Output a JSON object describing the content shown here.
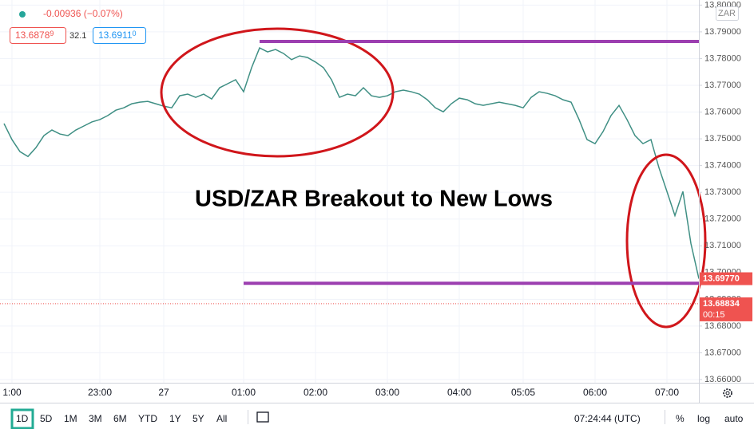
{
  "chart_data": {
    "type": "line",
    "change_label": "-0.00936 (−0.07%)",
    "bid": "13.6878",
    "bid_pip": "9",
    "spread": "32.1",
    "ask": "13.6911",
    "ask_pip": "0",
    "currency": "ZAR",
    "annotation": "USD/ZAR Breakout to New Lows",
    "color": "#3f8f84",
    "categories": [
      null,
      "1:00",
      null,
      null,
      null,
      null,
      null,
      null,
      null,
      null,
      null,
      null,
      "23:00",
      null,
      null,
      null,
      null,
      null,
      null,
      null,
      "27",
      null,
      null,
      null,
      null,
      null,
      null,
      null,
      null,
      null,
      "01:00",
      null,
      null,
      null,
      null,
      null,
      null,
      null,
      null,
      "02:00",
      null,
      null,
      null,
      null,
      null,
      null,
      null,
      null,
      "03:00",
      null,
      null,
      null,
      null,
      null,
      null,
      null,
      null,
      "04:00",
      null,
      null,
      null,
      null,
      null,
      null,
      null,
      "05:05",
      null,
      null,
      null,
      null,
      null,
      null,
      null,
      null,
      "06:00",
      null,
      null,
      null,
      null,
      null,
      null,
      null,
      null,
      "07:00",
      null,
      null,
      null,
      null
    ],
    "values": [
      13.7557,
      13.7497,
      13.7452,
      13.7434,
      13.7467,
      13.7512,
      13.7533,
      13.7518,
      13.7512,
      13.7533,
      13.7548,
      13.7563,
      13.7572,
      13.7587,
      13.7607,
      13.7616,
      13.7631,
      13.7637,
      13.764,
      13.7631,
      13.7622,
      13.7616,
      13.7661,
      13.7667,
      13.7655,
      13.7667,
      13.7649,
      13.7691,
      13.7706,
      13.7721,
      13.7676,
      13.7766,
      13.784,
      13.7825,
      13.7834,
      13.7819,
      13.7796,
      13.781,
      13.7804,
      13.7787,
      13.7766,
      13.7721,
      13.7655,
      13.7667,
      13.7661,
      13.7691,
      13.7661,
      13.7655,
      13.7661,
      13.7676,
      13.7682,
      13.7676,
      13.7667,
      13.7646,
      13.7616,
      13.7601,
      13.7631,
      13.7652,
      13.7646,
      13.7631,
      13.7625,
      13.7631,
      13.7637,
      13.7631,
      13.7625,
      13.7616,
      13.7655,
      13.7676,
      13.767,
      13.7661,
      13.7646,
      13.7637,
      13.7572,
      13.7497,
      13.7482,
      13.7527,
      13.7587,
      13.7625,
      13.7572,
      13.7512,
      13.7482,
      13.7497,
      13.7392,
      13.7303,
      13.7213,
      13.7303,
      13.7109,
      13.6977
    ],
    "ylim": [
      13.6588,
      13.8019
    ],
    "yticks": [
      {
        "value": 13.8,
        "label": "13.80000"
      },
      {
        "value": 13.79,
        "label": "13.79000"
      },
      {
        "value": 13.78,
        "label": "13.78000"
      },
      {
        "value": 13.77,
        "label": "13.77000"
      },
      {
        "value": 13.76,
        "label": "13.76000"
      },
      {
        "value": 13.75,
        "label": "13.75000"
      },
      {
        "value": 13.74,
        "label": "13.74000"
      },
      {
        "value": 13.73,
        "label": "13.73000"
      },
      {
        "value": 13.72,
        "label": "13.72000"
      },
      {
        "value": 13.71,
        "label": "13.71000"
      },
      {
        "value": 13.7,
        "label": "13.70000"
      },
      {
        "value": 13.69,
        "label": "13.69000"
      },
      {
        "value": 13.68,
        "label": "13.68000"
      },
      {
        "value": 13.67,
        "label": "13.67000"
      },
      {
        "value": 13.66,
        "label": "13.66000"
      }
    ],
    "grid": true,
    "hlines": [
      13.7864,
      13.696
    ],
    "hline_color": "#9c3fb0",
    "last_price": {
      "value": 13.6977,
      "label": "13.69770"
    },
    "bid_line": {
      "value": 13.68834,
      "label": "13.68834"
    },
    "countdown": "00:15"
  },
  "toolbar": {
    "ranges": [
      "1D",
      "5D",
      "1M",
      "3M",
      "6M",
      "YTD",
      "1Y",
      "5Y",
      "All"
    ],
    "clock": "07:24:44 (UTC)",
    "options": [
      "%",
      "log",
      "auto"
    ]
  }
}
